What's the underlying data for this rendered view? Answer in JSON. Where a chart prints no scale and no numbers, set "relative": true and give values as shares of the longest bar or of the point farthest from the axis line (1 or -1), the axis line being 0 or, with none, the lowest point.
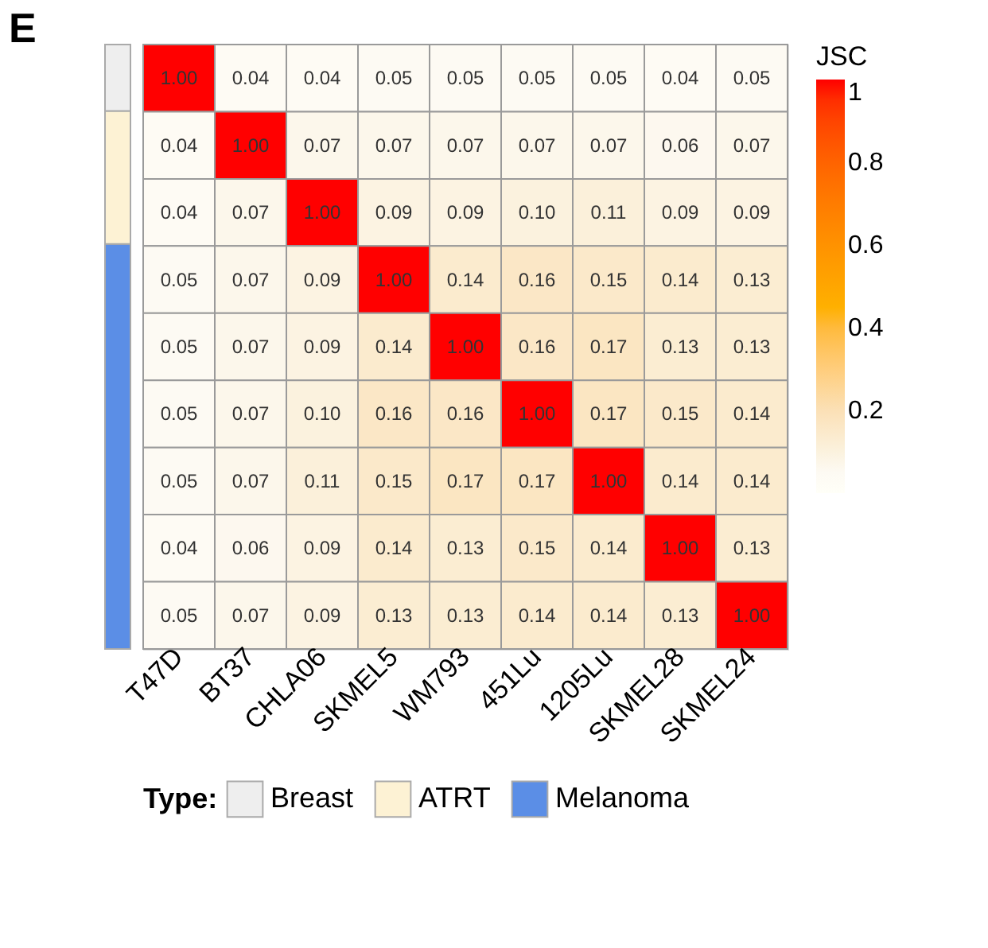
{
  "chart_data": [
    {
      "type": "heatmap",
      "title": "E",
      "clabel": "JSC",
      "categories": [
        "T47D",
        "BT37",
        "CHLA06",
        "SKMEL5",
        "WM793",
        "451Lu",
        "1205Lu",
        "SKMEL28",
        "SKMEL24"
      ],
      "y_categories": [
        null,
        null,
        null,
        null,
        null,
        null,
        null,
        null,
        null
      ],
      "cells": [
        [
          1.0,
          0.04,
          0.04,
          0.05,
          0.05,
          0.05,
          0.05,
          0.04,
          0.05
        ],
        [
          0.04,
          1.0,
          0.07,
          0.07,
          0.07,
          0.07,
          0.07,
          0.06,
          0.07
        ],
        [
          0.04,
          0.07,
          1.0,
          0.09,
          0.09,
          0.1,
          0.11,
          0.09,
          0.09
        ],
        [
          0.05,
          0.07,
          0.09,
          1.0,
          0.14,
          0.16,
          0.15,
          0.14,
          0.13
        ],
        [
          0.05,
          0.07,
          0.09,
          0.14,
          1.0,
          0.16,
          0.17,
          0.13,
          0.13
        ],
        [
          0.05,
          0.07,
          0.1,
          0.16,
          0.16,
          1.0,
          0.17,
          0.15,
          0.14
        ],
        [
          0.05,
          0.07,
          0.11,
          0.15,
          0.17,
          0.17,
          1.0,
          0.14,
          0.14
        ],
        [
          0.04,
          0.06,
          0.09,
          0.14,
          0.13,
          0.15,
          0.14,
          1.0,
          0.13
        ],
        [
          0.05,
          0.07,
          0.09,
          0.13,
          0.13,
          0.14,
          0.14,
          0.13,
          1.0
        ]
      ],
      "cell_labels": [
        [
          "1.00",
          "0.04",
          "0.04",
          "0.05",
          "0.05",
          "0.05",
          "0.05",
          "0.04",
          "0.05"
        ],
        [
          "0.04",
          "1.00",
          "0.07",
          "0.07",
          "0.07",
          "0.07",
          "0.07",
          "0.06",
          "0.07"
        ],
        [
          "0.04",
          "0.07",
          "1.00",
          "0.09",
          "0.09",
          "0.10",
          "0.11",
          "0.09",
          "0.09"
        ],
        [
          "0.05",
          "0.07",
          "0.09",
          "1.00",
          "0.14",
          "0.16",
          "0.15",
          "0.14",
          "0.13"
        ],
        [
          "0.05",
          "0.07",
          "0.09",
          "0.14",
          "1.00",
          "0.16",
          "0.17",
          "0.13",
          "0.13"
        ],
        [
          "0.05",
          "0.07",
          "0.10",
          "0.16",
          "0.16",
          "1.00",
          "0.17",
          "0.15",
          "0.14"
        ],
        [
          "0.05",
          "0.07",
          "0.11",
          "0.15",
          "0.17",
          "0.17",
          "1.00",
          "0.14",
          "0.14"
        ],
        [
          "0.04",
          "0.06",
          "0.09",
          "0.14",
          "0.13",
          "0.15",
          "0.14",
          "1.00",
          "0.13"
        ],
        [
          "0.05",
          "0.07",
          "0.09",
          "0.13",
          "0.13",
          "0.14",
          "0.14",
          "0.13",
          "1.00"
        ]
      ],
      "clim": [
        0,
        1
      ],
      "cticks": [
        0.2,
        0.4,
        0.6,
        0.8,
        1
      ]
    },
    {
      "type": "bar",
      "stacked": true,
      "relative": true,
      "legend_title": "Type:",
      "legend": "bottom",
      "categories": [
        null
      ],
      "series": [
        {
          "name": "Melanoma",
          "color": "#5b8ee6",
          "values": [
            0.67
          ]
        },
        {
          "name": "ATRT",
          "color": "#fdf2d4",
          "values": [
            0.22
          ]
        },
        {
          "name": "Breast",
          "color": "#eeeeee",
          "values": [
            0.11
          ]
        }
      ]
    }
  ]
}
